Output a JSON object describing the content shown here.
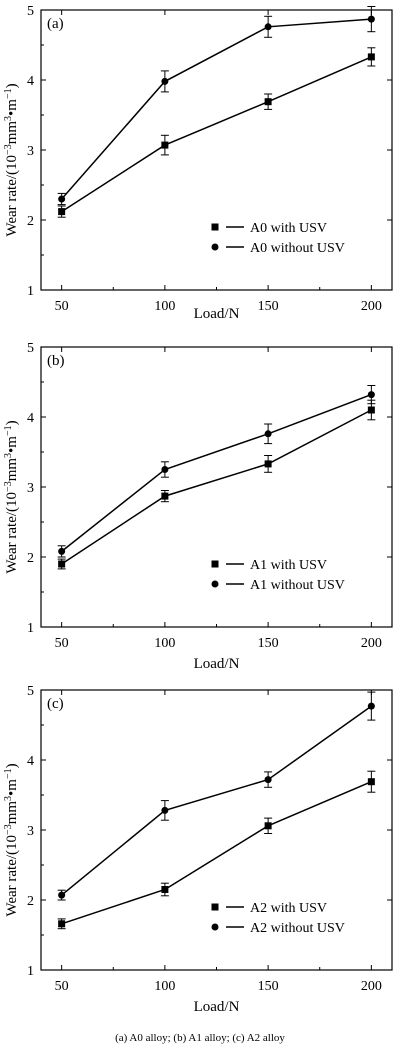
{
  "caption": "(a) A0 alloy; (b) A1 alloy; (c) A2 alloy",
  "chart_data": [
    {
      "type": "line",
      "panel_label": "(a)",
      "xlabel": "Load/N",
      "ylabel_main": "Wear rate/(10",
      "ylabel_sup1": "−3",
      "ylabel_mid": "mm",
      "ylabel_sup2": "3",
      "ylabel_mid2": "•m",
      "ylabel_sup3": "−1",
      "ylabel_end": ")",
      "x": [
        50,
        100,
        150,
        200
      ],
      "x_ticks": [
        "50",
        "100",
        "150",
        "200"
      ],
      "y_ticks": [
        "1",
        "2",
        "3",
        "4",
        "5"
      ],
      "xlim": [
        40,
        210
      ],
      "ylim": [
        1,
        5
      ],
      "legend_position": "bottom-right",
      "series": [
        {
          "name": "A0 with USV",
          "marker": "square",
          "values": [
            2.12,
            3.07,
            3.69,
            4.33
          ],
          "errors": [
            0.08,
            0.14,
            0.11,
            0.13
          ]
        },
        {
          "name": "A0 without USV",
          "marker": "circle",
          "values": [
            2.3,
            3.98,
            4.76,
            4.87
          ],
          "errors": [
            0.08,
            0.15,
            0.15,
            0.18
          ]
        }
      ]
    },
    {
      "type": "line",
      "panel_label": "(b)",
      "xlabel": "Load/N",
      "ylabel_main": "Wear rate/(10",
      "ylabel_sup1": "−3",
      "ylabel_mid": "mm",
      "ylabel_sup2": "3",
      "ylabel_mid2": "•m",
      "ylabel_sup3": "−1",
      "ylabel_end": ")",
      "x": [
        50,
        100,
        150,
        200
      ],
      "x_ticks": [
        "50",
        "100",
        "150",
        "200"
      ],
      "y_ticks": [
        "1",
        "2",
        "3",
        "4",
        "5"
      ],
      "xlim": [
        40,
        210
      ],
      "ylim": [
        1,
        5
      ],
      "legend_position": "bottom-right",
      "series": [
        {
          "name": "A1 with USV",
          "marker": "square",
          "values": [
            1.9,
            2.87,
            3.33,
            4.1
          ],
          "errors": [
            0.07,
            0.08,
            0.12,
            0.14
          ]
        },
        {
          "name": "A1 without USV",
          "marker": "circle",
          "values": [
            2.08,
            3.25,
            3.76,
            4.32
          ],
          "errors": [
            0.08,
            0.11,
            0.14,
            0.13
          ]
        }
      ]
    },
    {
      "type": "line",
      "panel_label": "(c)",
      "xlabel": "Load/N",
      "ylabel_main": "Wear rate/(10",
      "ylabel_sup1": "−3",
      "ylabel_mid": "mm",
      "ylabel_sup2": "3",
      "ylabel_mid2": "•m",
      "ylabel_sup3": "−1",
      "ylabel_end": ")",
      "x": [
        50,
        100,
        150,
        200
      ],
      "x_ticks": [
        "50",
        "100",
        "150",
        "200"
      ],
      "y_ticks": [
        "1",
        "2",
        "3",
        "4",
        "5"
      ],
      "xlim": [
        40,
        210
      ],
      "ylim": [
        1,
        5
      ],
      "legend_position": "bottom-right",
      "series": [
        {
          "name": "A2 with USV",
          "marker": "square",
          "values": [
            1.66,
            2.15,
            3.06,
            3.69
          ],
          "errors": [
            0.07,
            0.09,
            0.11,
            0.15
          ]
        },
        {
          "name": "A2 without USV",
          "marker": "circle",
          "values": [
            2.07,
            3.28,
            3.72,
            4.77
          ],
          "errors": [
            0.07,
            0.14,
            0.11,
            0.2
          ]
        }
      ]
    }
  ]
}
